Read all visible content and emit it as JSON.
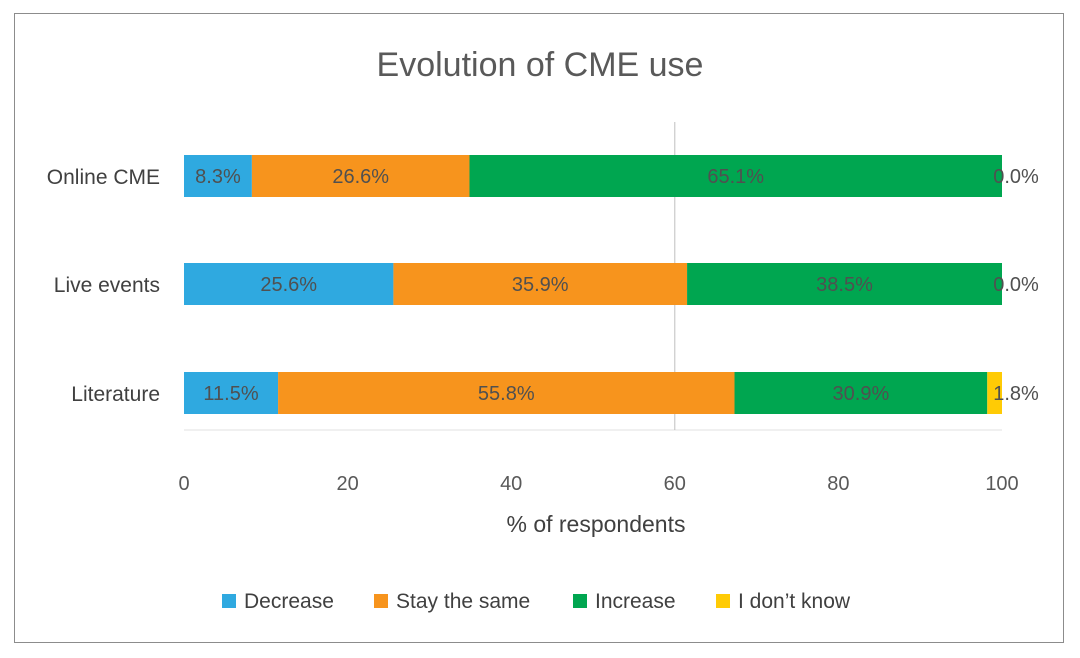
{
  "chart_data": {
    "type": "bar",
    "orientation": "horizontal",
    "stacked": true,
    "title": "Evolution of CME use",
    "xlabel": "% of respondents",
    "ylabel": "",
    "xlim": [
      0,
      100
    ],
    "xticks": [
      0,
      20,
      40,
      60,
      80,
      100
    ],
    "categories": [
      "Online CME",
      "Live events",
      "Literature"
    ],
    "series": [
      {
        "name": "Decrease",
        "color": "#2fa9e0",
        "values": [
          8.3,
          25.6,
          11.5
        ],
        "labels": [
          "8.3%",
          "25.6%",
          "11.5%"
        ]
      },
      {
        "name": "Stay the same",
        "color": "#f7941d",
        "values": [
          26.6,
          35.9,
          55.8
        ],
        "labels": [
          "26.6%",
          "35.9%",
          "55.8%"
        ]
      },
      {
        "name": "Increase",
        "color": "#00a650",
        "values": [
          65.1,
          38.5,
          30.9
        ],
        "labels": [
          "65.1%",
          "38.5%",
          "30.9%"
        ]
      },
      {
        "name": "I don’t know",
        "color": "#ffcb05",
        "values": [
          0.0,
          0.0,
          1.8
        ],
        "labels": [
          "0.0%",
          "0.0%",
          "1.8%"
        ]
      }
    ],
    "legend_position": "bottom",
    "grid": false
  }
}
